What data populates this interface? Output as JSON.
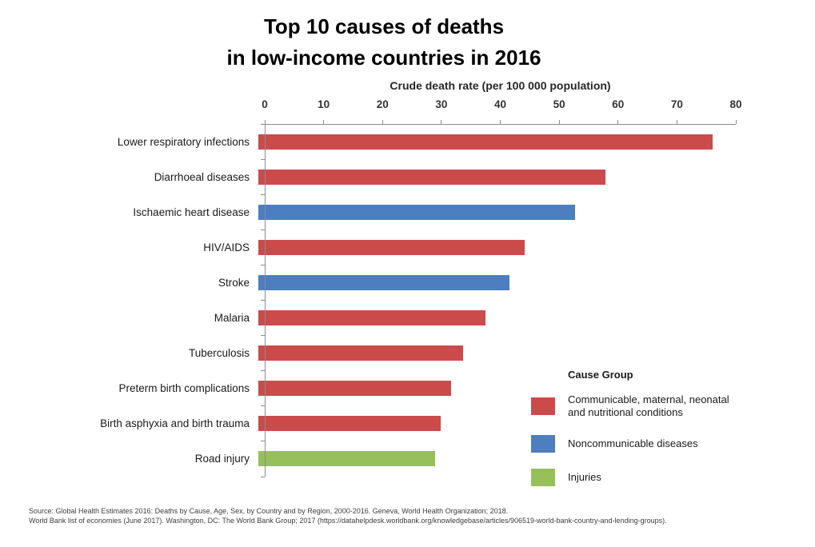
{
  "chart_data": {
    "type": "bar",
    "orientation": "horizontal",
    "title": "Top 10 causes of deaths in low-income countries in 2016",
    "title_lines": [
      "Top 10 causes of deaths",
      "in low-income countries in 2016"
    ],
    "xlabel": "Crude death rate (per 100 000 population)",
    "xlim": [
      0,
      80
    ],
    "xticks": [
      "0",
      "10",
      "20",
      "30",
      "40",
      "50",
      "60",
      "70",
      "80"
    ],
    "grid": false,
    "axis_color": "#8c8c8c",
    "categories": [
      "Lower respiratory infections",
      "Diarrhoeal diseases",
      "Ischaemic heart disease",
      "HIV/AIDS",
      "Stroke",
      "Malaria",
      "Tuberculosis",
      "Preterm birth complications",
      "Birth asphyxia and birth trauma",
      "Road injury"
    ],
    "bars": [
      {
        "label": "Lower respiratory infections",
        "value": 76,
        "group": "communicable"
      },
      {
        "label": "Diarrhoeal diseases",
        "value": 58,
        "group": "communicable"
      },
      {
        "label": "Ischaemic heart disease",
        "value": 53,
        "group": "noncommunicable"
      },
      {
        "label": "HIV/AIDS",
        "value": 44.5,
        "group": "communicable"
      },
      {
        "label": "Stroke",
        "value": 42,
        "group": "noncommunicable"
      },
      {
        "label": "Malaria",
        "value": 38,
        "group": "communicable"
      },
      {
        "label": "Tuberculosis",
        "value": 34.3,
        "group": "communicable"
      },
      {
        "label": "Preterm birth complications",
        "value": 32.2,
        "group": "communicable"
      },
      {
        "label": "Birth asphyxia and birth trauma",
        "value": 30.5,
        "group": "communicable"
      },
      {
        "label": "Road injury",
        "value": 29.5,
        "group": "injuries"
      }
    ],
    "group_colors": {
      "communicable": "#CB4B4B",
      "noncommunicable": "#4C7EC0",
      "injuries": "#96C05A"
    },
    "legend": {
      "position": "bottom-right",
      "title": "Cause Group",
      "entries": [
        {
          "label": "Communicable, maternal, neonatal and nutritional conditions",
          "label_lines": [
            "Communicable, maternal, neonatal",
            "and nutritional conditions"
          ],
          "group": "communicable"
        },
        {
          "label": "Noncommunicable diseases",
          "label_lines": [
            "Noncommunicable diseases"
          ],
          "group": "noncommunicable"
        },
        {
          "label": "Injuries",
          "label_lines": [
            "Injuries"
          ],
          "group": "injuries"
        }
      ]
    }
  },
  "footer": {
    "source_lines": [
      "Source: Global Health Estimates 2016: Deaths by Cause, Age, Sex, by Country and by Region, 2000-2016. Geneva, World Health Organization; 2018.",
      "World Bank list of economies (June 2017). Washington, DC: The World Bank Group; 2017 (https://datahelpdesk.worldbank.org/knowledgebase/articles/906519-world-bank-country-and-lending-groups)."
    ]
  }
}
